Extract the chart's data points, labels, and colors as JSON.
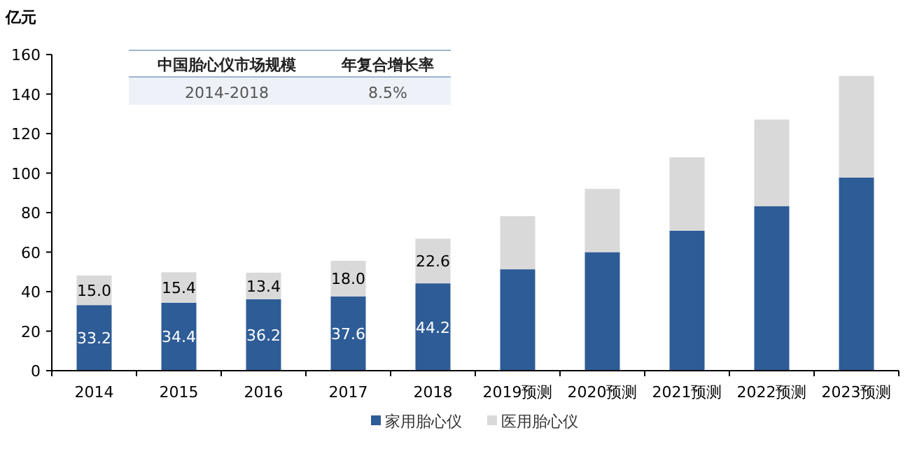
{
  "chart_data": {
    "type": "bar",
    "stacked": true,
    "ylabel": "亿元",
    "categories": [
      "2014",
      "2015",
      "2016",
      "2017",
      "2018",
      "2019预测",
      "2020预测",
      "2021预测",
      "2022预测",
      "2023预测"
    ],
    "series": [
      {
        "name": "家用胎心仪",
        "color": "#2e5c96",
        "values": [
          33.2,
          34.4,
          36.2,
          37.6,
          44.2,
          51.3,
          60.0,
          70.8,
          83.3,
          97.7
        ],
        "value_labels": [
          "33.2",
          "34.4",
          "36.2",
          "37.6",
          "44.2",
          null,
          null,
          null,
          null,
          null
        ]
      },
      {
        "name": "医用胎心仪",
        "color": "#d9d9d9",
        "values": [
          15.0,
          15.4,
          13.4,
          18.0,
          22.6,
          26.9,
          32.0,
          37.2,
          43.8,
          51.5
        ],
        "value_labels": [
          "15.0",
          "15.4",
          "13.4",
          "18.0",
          "22.6",
          null,
          null,
          null,
          null,
          null
        ]
      }
    ],
    "ylim": [
      0,
      160
    ],
    "yticks": [
      0,
      20,
      40,
      60,
      80,
      100,
      120,
      140,
      160
    ],
    "legend": "bottom",
    "annotations": [
      "中国胎心仪市场规模",
      "年复合增长率",
      "2014-2018",
      "8.5%"
    ]
  }
}
